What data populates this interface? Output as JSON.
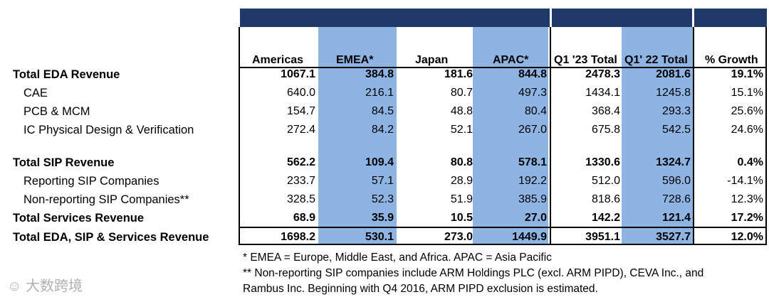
{
  "columns": [
    "Americas",
    "EMEA*",
    "Japan",
    "APAC*",
    "Q1 '23 Total",
    "Q1' 22 Total",
    "% Growth"
  ],
  "rows": [
    {
      "label": "Total EDA Revenue",
      "bold": true,
      "indent": false,
      "values": [
        "1067.1",
        "384.8",
        "181.6",
        "844.8",
        "2478.3",
        "2081.6",
        "19.1%"
      ]
    },
    {
      "label": "CAE",
      "bold": false,
      "indent": true,
      "values": [
        "640.0",
        "216.1",
        "80.7",
        "497.3",
        "1434.1",
        "1245.8",
        "15.1%"
      ]
    },
    {
      "label": "PCB & MCM",
      "bold": false,
      "indent": true,
      "values": [
        "154.7",
        "84.5",
        "48.8",
        "80.4",
        "368.4",
        "293.3",
        "25.6%"
      ]
    },
    {
      "label": "IC Physical Design & Verification",
      "bold": false,
      "indent": true,
      "values": [
        "272.4",
        "84.2",
        "52.1",
        "267.0",
        "675.8",
        "542.5",
        "24.6%"
      ]
    },
    {
      "label": "Total SIP Revenue",
      "bold": true,
      "indent": false,
      "values": [
        "562.2",
        "109.4",
        "80.8",
        "578.1",
        "1330.6",
        "1324.7",
        "0.4%"
      ]
    },
    {
      "label": "Reporting SIP Companies",
      "bold": false,
      "indent": true,
      "values": [
        "233.7",
        "57.1",
        "28.9",
        "192.2",
        "512.0",
        "596.0",
        "-14.1%"
      ]
    },
    {
      "label": "Non-reporting SIP Companies**",
      "bold": false,
      "indent": true,
      "values": [
        "328.5",
        "52.3",
        "51.9",
        "385.9",
        "818.6",
        "728.6",
        "12.3%"
      ]
    },
    {
      "label": "Total Services Revenue",
      "bold": true,
      "indent": false,
      "values": [
        "68.9",
        "35.9",
        "10.5",
        "27.0",
        "142.2",
        "121.4",
        "17.2%"
      ]
    },
    {
      "label": "Total EDA, SIP & Services Revenue",
      "bold": true,
      "indent": false,
      "values": [
        "1698.2",
        "530.1",
        "273.0",
        "1449.9",
        "3951.1",
        "3527.7",
        "12.0%"
      ]
    }
  ],
  "footnotes": [
    "* EMEA = Europe, Middle East, and Africa. APAC = Asia Pacific",
    "** Non-reporting SIP companies include ARM Holdings PLC (excl. ARM PIPD), CEVA Inc., and",
    "Rambus Inc. Beginning with Q4 2016, ARM PIPD exclusion is estimated."
  ],
  "watermark": "大数跨境",
  "colors": {
    "header_band": "#1f3a68",
    "highlight": "#8eb4e3"
  }
}
